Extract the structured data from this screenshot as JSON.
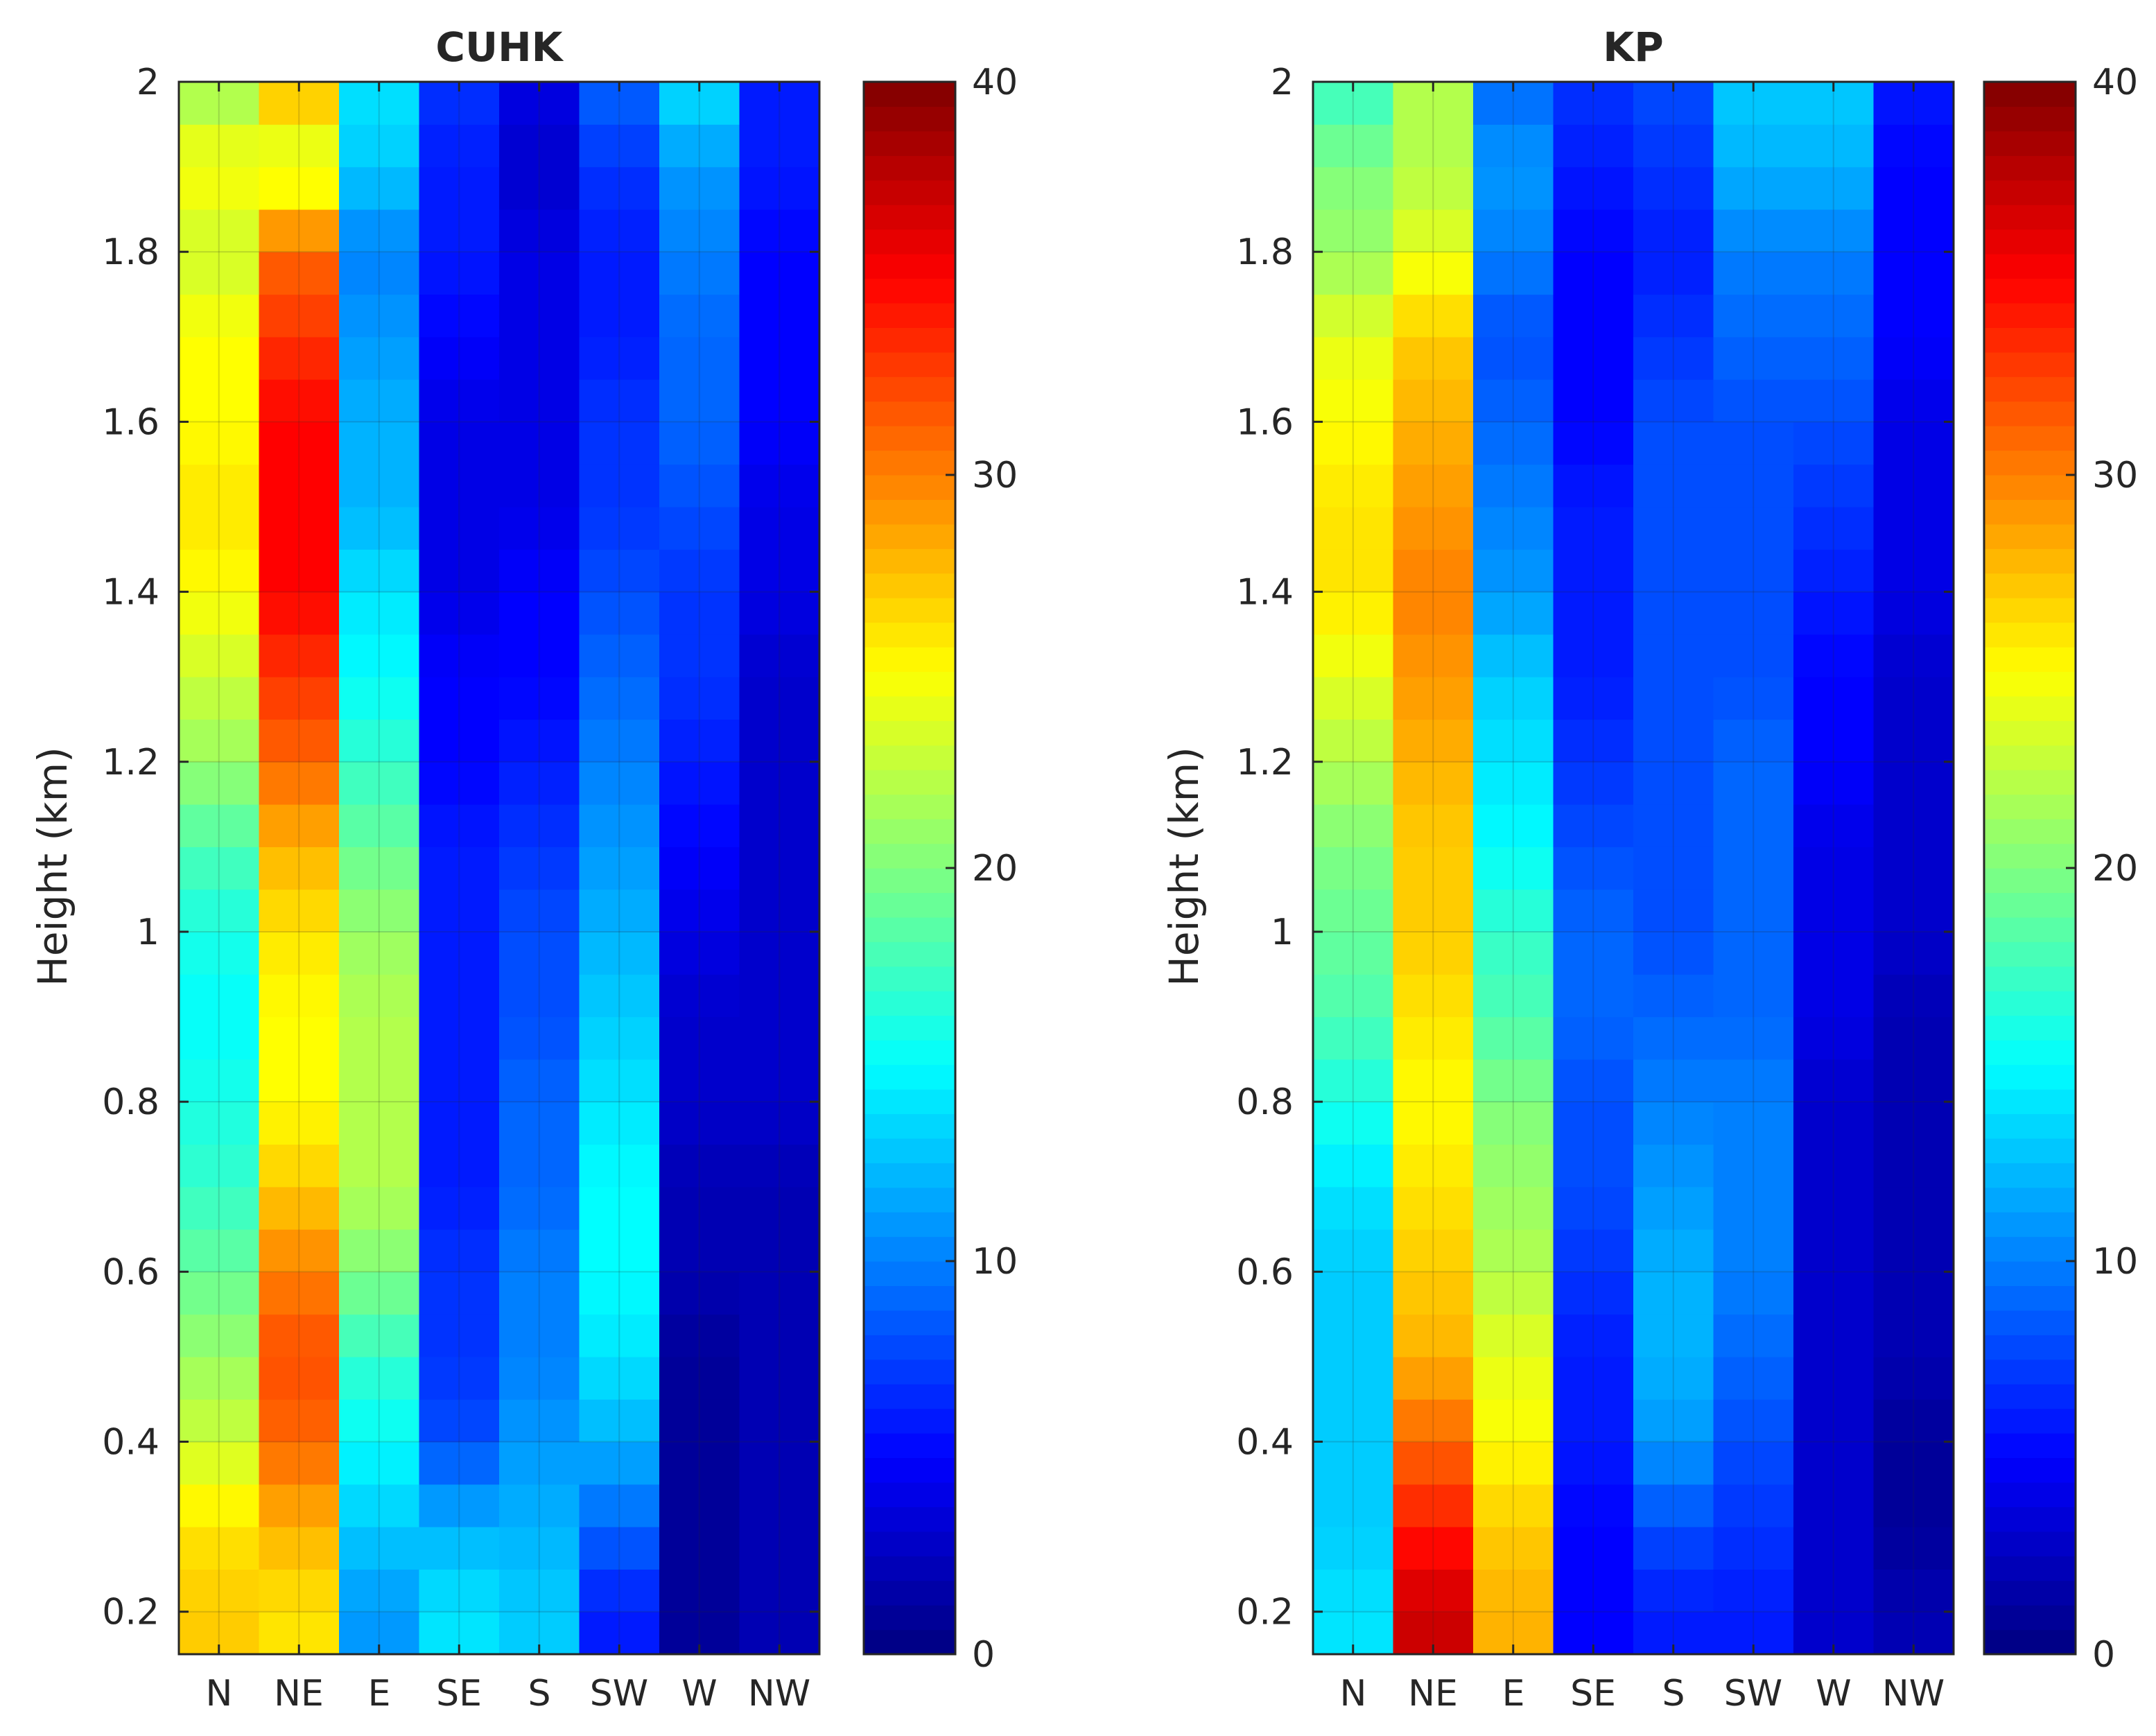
{
  "chart_data": [
    {
      "type": "heatmap",
      "title": "CUHK",
      "xlabel": "",
      "ylabel": "Height (km)",
      "categories": [
        "N",
        "NE",
        "E",
        "SE",
        "S",
        "SW",
        "W",
        "NW"
      ],
      "y_ticks": [
        "0.2",
        "0.4",
        "0.6",
        "0.8",
        "1",
        "1.2",
        "1.4",
        "1.6",
        "1.8",
        "2"
      ],
      "ylim": [
        0.15,
        2.0
      ],
      "heights": [
        0.2,
        0.3,
        0.4,
        0.5,
        0.6,
        0.7,
        0.8,
        0.9,
        1.0,
        1.1,
        1.2,
        1.3,
        1.4,
        1.5,
        1.6,
        1.7,
        1.8,
        1.9,
        2.0
      ],
      "values": {
        "N": [
          27,
          26,
          23,
          21,
          19,
          17,
          16,
          15,
          16,
          18,
          21,
          23,
          25,
          26,
          25,
          25,
          23,
          25,
          21
        ],
        "NE": [
          26,
          28,
          31,
          32,
          30,
          27,
          25,
          25,
          26,
          28,
          31,
          33,
          35,
          35,
          35,
          33,
          31,
          23,
          28
        ],
        "E": [
          11,
          13,
          15,
          17,
          20,
          22,
          22,
          22,
          21,
          19,
          17,
          15,
          14,
          12,
          12,
          11,
          10,
          13,
          14
        ],
        "SE": [
          14,
          12,
          8,
          7,
          7,
          6,
          6,
          6,
          6,
          6,
          5,
          5,
          4,
          4,
          4,
          5,
          6,
          6,
          7
        ],
        "S": [
          13,
          12,
          11,
          10,
          10,
          9,
          9,
          8,
          8,
          7,
          6,
          5,
          5,
          4,
          4,
          4,
          4,
          3,
          4
        ],
        "SW": [
          6,
          9,
          12,
          14,
          15,
          15,
          14,
          13,
          12,
          11,
          10,
          9,
          8,
          7,
          7,
          6,
          6,
          7,
          9
        ],
        "W": [
          1,
          1,
          1,
          1,
          2,
          2,
          3,
          3,
          4,
          5,
          6,
          7,
          7,
          8,
          9,
          9,
          10,
          11,
          14
        ],
        "NW": [
          2,
          2,
          2,
          2,
          2,
          2,
          3,
          3,
          3,
          3,
          3,
          3,
          4,
          4,
          5,
          5,
          5,
          6,
          6
        ]
      },
      "colorbar": {
        "min": 0,
        "max": 40,
        "ticks": [
          "0",
          "10",
          "20",
          "30",
          "40"
        ],
        "colormap": "jet"
      }
    },
    {
      "type": "heatmap",
      "title": "KP",
      "xlabel": "",
      "ylabel": "Height (km)",
      "categories": [
        "N",
        "NE",
        "E",
        "SE",
        "S",
        "SW",
        "W",
        "NW"
      ],
      "y_ticks": [
        "0.2",
        "0.4",
        "0.6",
        "0.8",
        "1",
        "1.2",
        "1.4",
        "1.6",
        "1.8",
        "2"
      ],
      "ylim": [
        0.15,
        2.0
      ],
      "heights": [
        0.2,
        0.3,
        0.4,
        0.5,
        0.6,
        0.7,
        0.8,
        0.9,
        1.0,
        1.1,
        1.2,
        1.3,
        1.4,
        1.5,
        1.6,
        1.7,
        1.8,
        1.9,
        2.0
      ],
      "values": {
        "N": [
          14,
          13,
          13,
          13,
          13,
          14,
          16,
          18,
          19,
          20,
          22,
          24,
          26,
          26,
          25,
          24,
          21,
          20,
          17
        ],
        "NE": [
          37,
          34,
          31,
          28,
          27,
          26,
          25,
          26,
          27,
          27,
          28,
          29,
          30,
          29,
          28,
          27,
          24,
          22,
          22
        ],
        "E": [
          28,
          27,
          25,
          24,
          22,
          21,
          20,
          18,
          17,
          15,
          14,
          13,
          11,
          10,
          9,
          8,
          10,
          11,
          9
        ],
        "SE": [
          5,
          5,
          6,
          6,
          7,
          8,
          8,
          9,
          9,
          8,
          7,
          6,
          6,
          6,
          5,
          5,
          5,
          6,
          7
        ],
        "S": [
          6,
          8,
          11,
          12,
          12,
          11,
          10,
          9,
          8,
          8,
          8,
          8,
          8,
          8,
          8,
          7,
          6,
          7,
          8
        ],
        "SW": [
          6,
          7,
          8,
          9,
          10,
          10,
          10,
          9,
          9,
          9,
          9,
          8,
          8,
          8,
          8,
          9,
          10,
          12,
          13
        ],
        "W": [
          3,
          3,
          3,
          3,
          3,
          3,
          3,
          4,
          4,
          4,
          5,
          5,
          6,
          7,
          8,
          9,
          10,
          12,
          13
        ],
        "NW": [
          2,
          1,
          1,
          2,
          2,
          2,
          2,
          2,
          3,
          3,
          3,
          3,
          4,
          4,
          4,
          5,
          5,
          5,
          6
        ]
      },
      "colorbar": {
        "min": 0,
        "max": 40,
        "ticks": [
          "0",
          "10",
          "20",
          "30",
          "40"
        ],
        "colormap": "jet"
      }
    }
  ]
}
